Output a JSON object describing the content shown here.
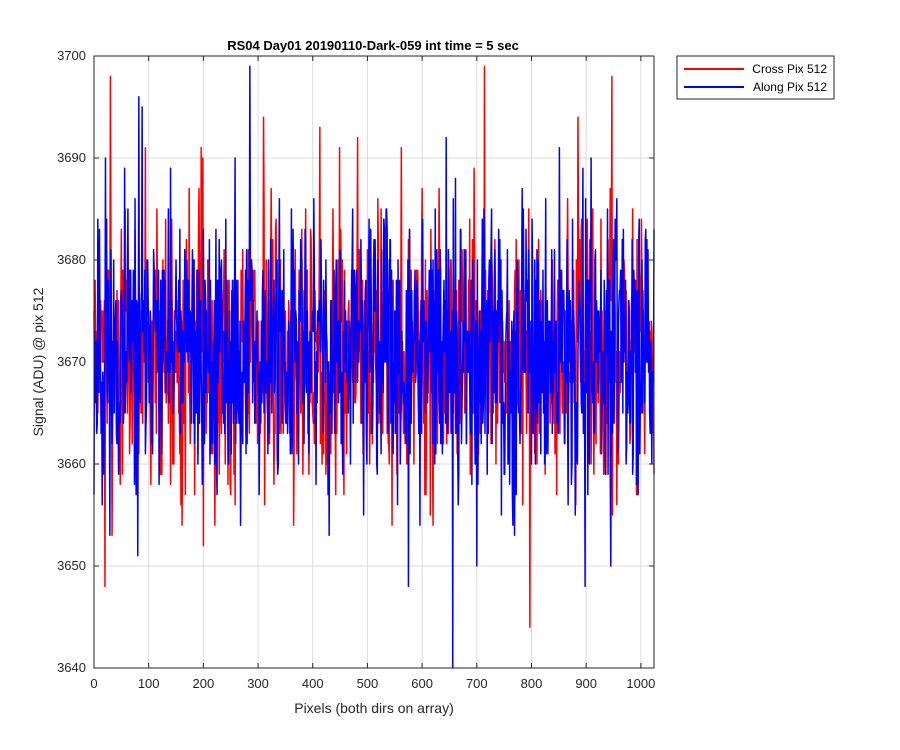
{
  "chart_data": {
    "type": "line",
    "title": "RS04 Day01 20190110-Dark-059 int time = 5 sec",
    "xlabel": "Pixels (both dirs on array)",
    "ylabel": "Signal (ADU) @ pix 512",
    "xlim": [
      0,
      1024
    ],
    "ylim": [
      3640,
      3700
    ],
    "xticks": [
      0,
      100,
      200,
      300,
      400,
      500,
      600,
      700,
      800,
      900,
      1000
    ],
    "yticks": [
      3640,
      3650,
      3660,
      3670,
      3680,
      3690,
      3700
    ],
    "grid": true,
    "legend_position": "outside-top-right",
    "series": [
      {
        "name": "Cross Pix 512",
        "color": "#ff0000",
        "seed": 7,
        "mean": 3671,
        "spread": 14,
        "highlights": [
          [
            20,
            3648
          ],
          [
            94,
            3691
          ],
          [
            199,
            3690
          ],
          [
            310,
            3694
          ],
          [
            413,
            3693
          ],
          [
            562,
            3691
          ],
          [
            797,
            3644
          ],
          [
            885,
            3694
          ],
          [
            1024,
            3659
          ]
        ]
      },
      {
        "name": "Along Pix 512",
        "color": "#0000ff",
        "seed": 11,
        "mean": 3671,
        "spread": 14,
        "highlights": [
          [
            0,
            3657
          ],
          [
            88,
            3695
          ],
          [
            285,
            3699
          ],
          [
            575,
            3648
          ],
          [
            656,
            3640
          ],
          [
            700,
            3650
          ],
          [
            945,
            3650
          ]
        ]
      }
    ]
  }
}
